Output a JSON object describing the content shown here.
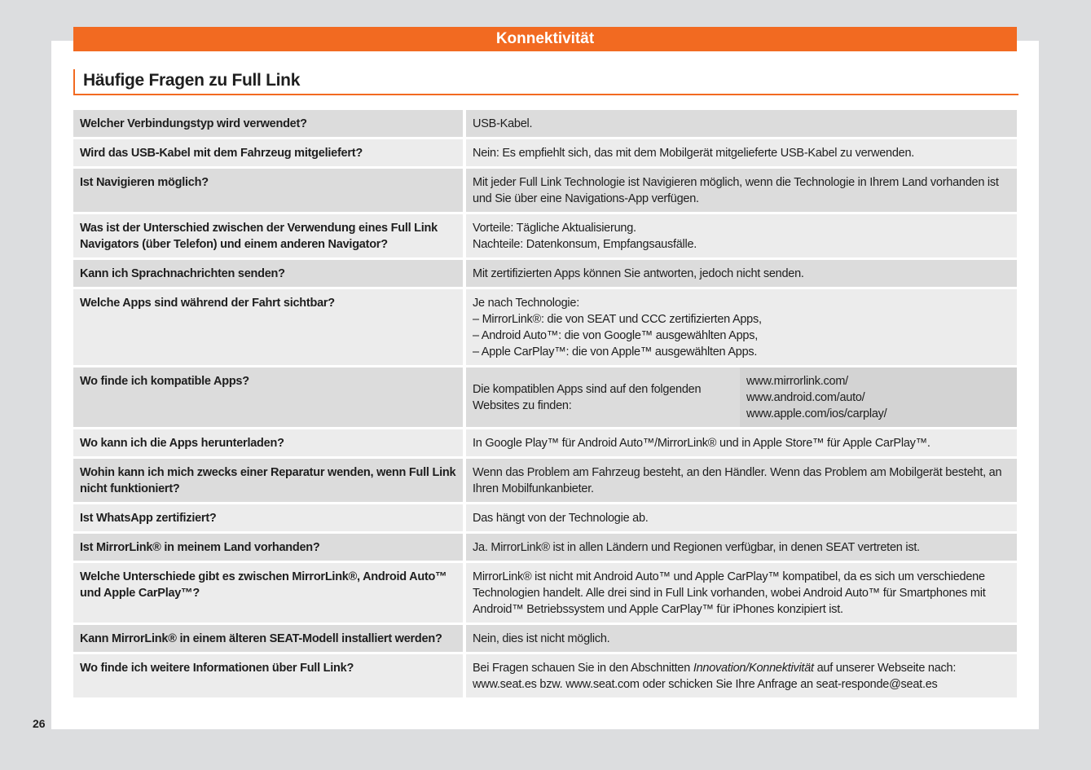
{
  "header": {
    "section": "Konnektivität",
    "title": "Häufige Fragen zu Full Link"
  },
  "faq": [
    {
      "q": "Welcher Verbindungstyp wird verwendet?",
      "a": "USB-Kabel."
    },
    {
      "q": "Wird das USB-Kabel mit dem Fahrzeug mitgeliefert?",
      "a": "Nein: Es empfiehlt sich, das mit dem Mobilgerät mitgelieferte USB-Kabel zu verwenden."
    },
    {
      "q": "Ist Navigieren möglich?",
      "a": "Mit jeder Full Link Technologie ist Navigieren möglich, wenn die Technologie in Ihrem Land vorhanden ist und Sie über eine Navigations-App verfügen."
    },
    {
      "q": "Was ist der Unterschied zwischen der Verwendung eines Full Link Navigators (über Telefon) und einem anderen Navigator?",
      "a": "Vorteile: Tägliche Aktualisierung.\nNachteile: Datenkonsum, Empfangsausfälle."
    },
    {
      "q": "Kann ich Sprachnachrichten senden?",
      "a": "Mit zertifizierten Apps können Sie antworten, jedoch nicht senden."
    },
    {
      "q": "Welche Apps sind während der Fahrt sichtbar?",
      "a": "Je nach Technologie:\n– MirrorLink®: die von SEAT und CCC zertifizierten Apps,\n– Android Auto™: die von Google™ ausgewählten Apps,\n– Apple CarPlay™: die von Apple™ ausgewählten Apps."
    },
    {
      "q": "Wo finde ich kompatible Apps?",
      "a": "Die kompatiblen Apps sind auf den folgenden Websites zu finden:",
      "links": "www.mirrorlink.com/\nwww.android.com/auto/\nwww.apple.com/ios/carplay/"
    },
    {
      "q": "Wo kann ich die Apps herunterladen?",
      "a": "In Google Play™ für Android Auto™/MirrorLink® und in Apple Store™ für Apple CarPlay™."
    },
    {
      "q": "Wohin kann ich mich zwecks einer Reparatur wenden, wenn Full Link nicht funktioniert?",
      "a": "Wenn das Problem am Fahrzeug besteht, an den Händler. Wenn das Problem am Mobilgerät besteht, an Ihren Mobilfunkanbieter."
    },
    {
      "q": "Ist WhatsApp zertifiziert?",
      "a": "Das hängt von der Technologie ab."
    },
    {
      "q": "Ist MirrorLink® in meinem Land vorhanden?",
      "a": "Ja. MirrorLink® ist in allen Ländern und Regionen verfügbar, in denen SEAT vertreten ist."
    },
    {
      "q": "Welche Unterschiede gibt es zwischen MirrorLink®, Android Auto™ und Apple CarPlay™?",
      "a": "MirrorLink® ist nicht mit Android Auto™ und Apple CarPlay™ kompatibel, da es sich um verschiedene Technologien handelt. Alle drei sind in Full Link vorhanden, wobei Android Auto™ für Smartphones mit Android™ Betriebssystem und Apple CarPlay™ für iPhones konzipiert ist."
    },
    {
      "q": "Kann MirrorLink® in einem älteren SEAT-Modell installiert werden?",
      "a": "Nein, dies ist nicht möglich."
    },
    {
      "q": "Wo finde ich weitere Informationen über Full Link?",
      "a_pre": "Bei Fragen schauen Sie in den Abschnitten ",
      "a_em": "Innovation/Konnektivität",
      "a_post": " auf unserer Webseite nach: www.seat.es bzw. www.seat.com oder schicken Sie Ihre Anfrage an seat-responde@seat.es"
    }
  ],
  "page_number": "26",
  "colors": {
    "accent": "#f26a21",
    "row_dark": "#dcdcdc",
    "row_light": "#ececec"
  }
}
